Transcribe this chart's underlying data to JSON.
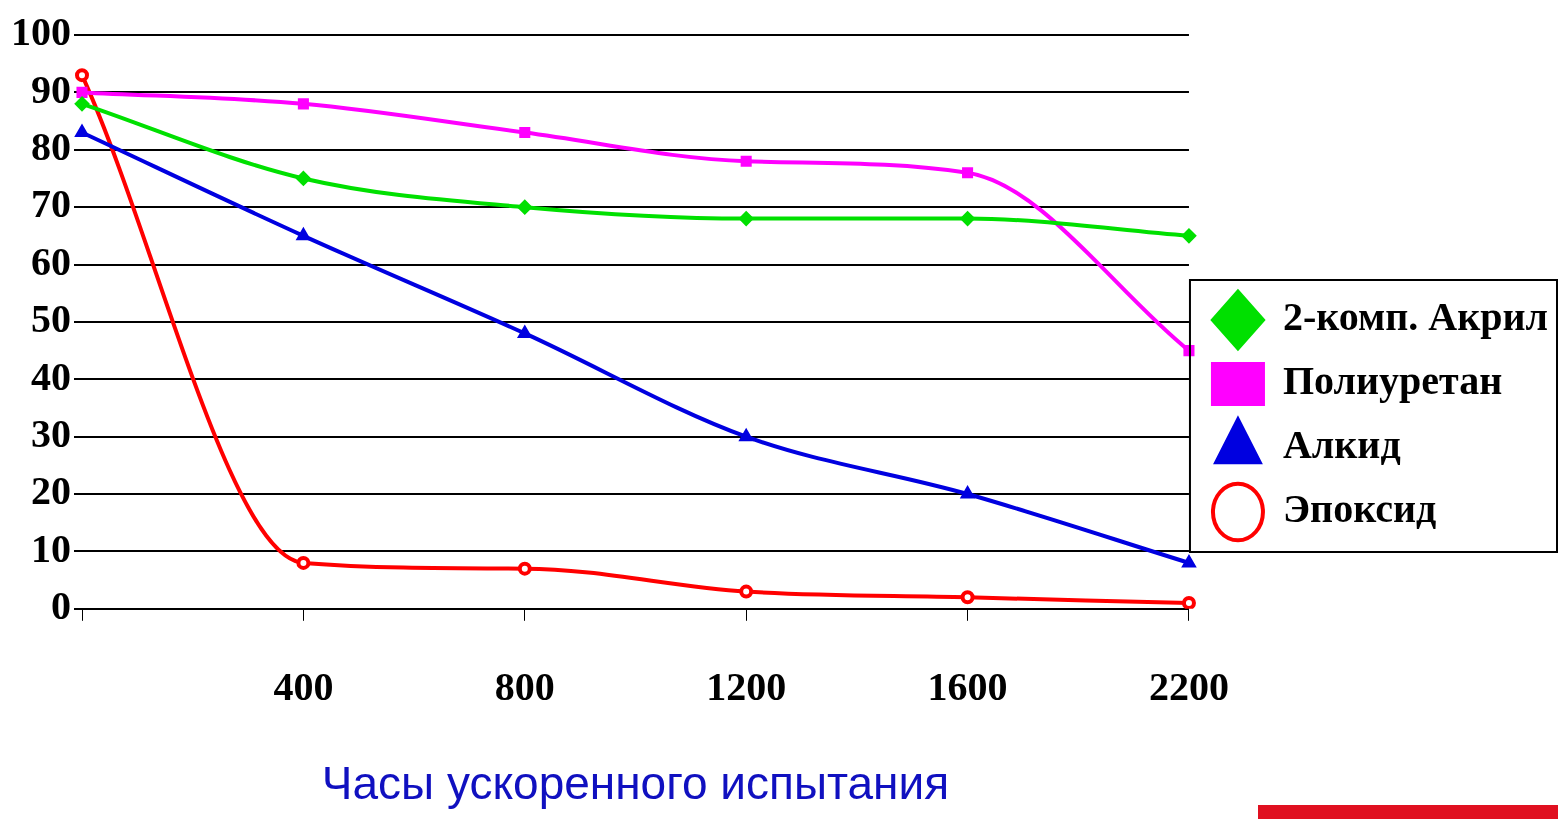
{
  "chart_data": {
    "type": "line",
    "xlabel": "Часы ускоренного испытания",
    "categories": [
      null,
      "400",
      "800",
      "1200",
      "1600",
      "2200"
    ],
    "ylim": [
      0,
      100
    ],
    "yticks": [
      0,
      10,
      20,
      30,
      40,
      50,
      60,
      70,
      80,
      90,
      100
    ],
    "grid": "y",
    "legend": "right",
    "series": [
      {
        "name": "2-комп. Акрил",
        "color": "#00e000",
        "marker": "diamond",
        "values": [
          88,
          75,
          70,
          68,
          68,
          65
        ]
      },
      {
        "name": "Полиуретан",
        "color": "#ff00ff",
        "marker": "square",
        "values": [
          90,
          88,
          83,
          78,
          76,
          45
        ]
      },
      {
        "name": "Алкид",
        "color": "#0000e0",
        "marker": "triangle",
        "values": [
          83,
          65,
          48,
          30,
          20,
          8
        ]
      },
      {
        "name": "Эпоксид",
        "color": "#ff0000",
        "marker": "circle",
        "values": [
          93,
          8,
          7,
          3,
          2,
          1
        ]
      }
    ]
  }
}
